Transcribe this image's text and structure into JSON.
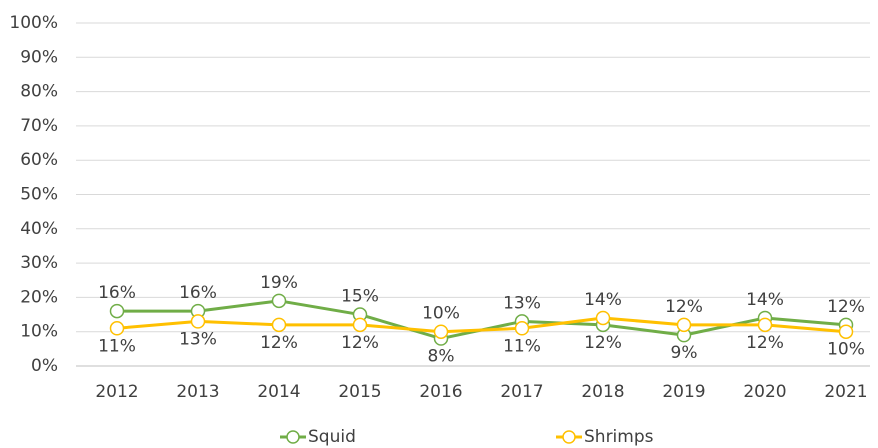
{
  "chart_data": {
    "type": "line",
    "categories": [
      "2012",
      "2013",
      "2014",
      "2015",
      "2016",
      "2017",
      "2018",
      "2019",
      "2020",
      "2021"
    ],
    "series": [
      {
        "name": "Squid",
        "color": "#70ad47",
        "label_color": "#70ad47",
        "values": [
          16,
          16,
          19,
          15,
          8,
          13,
          12,
          9,
          14,
          12
        ],
        "value_labels": [
          "16%",
          "16%",
          "19%",
          "15%",
          "8%",
          "13%",
          "12%",
          "9%",
          "14%",
          "12%"
        ]
      },
      {
        "name": "Shrimps",
        "color": "#ffc000",
        "label_color": "#bf9000",
        "values": [
          11,
          13,
          12,
          12,
          10,
          11,
          14,
          12,
          12,
          10
        ],
        "value_labels": [
          "11%",
          "13%",
          "12%",
          "12%",
          "10%",
          "11%",
          "14%",
          "12%",
          "12%",
          "10%"
        ]
      }
    ],
    "ylim": [
      0,
      100
    ],
    "yticks": [
      {
        "value": 0,
        "label": "0%"
      },
      {
        "value": 10,
        "label": "10%"
      },
      {
        "value": 20,
        "label": "20%"
      },
      {
        "value": 30,
        "label": "30%"
      },
      {
        "value": 40,
        "label": "40%"
      },
      {
        "value": 50,
        "label": "50%"
      },
      {
        "value": 60,
        "label": "60%"
      },
      {
        "value": 70,
        "label": "70%"
      },
      {
        "value": 80,
        "label": "80%"
      },
      {
        "value": 90,
        "label": "90%"
      },
      {
        "value": 100,
        "label": "100%"
      }
    ],
    "grid": true,
    "legend": "bottom"
  }
}
